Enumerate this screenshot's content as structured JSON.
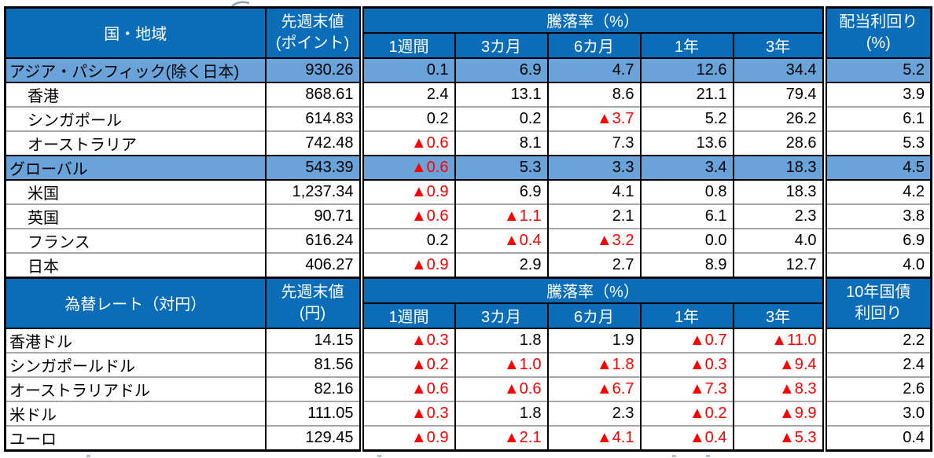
{
  "colors": {
    "header_blue": "#0b6db8",
    "highlight_blue": "#69a3da",
    "negative_red": "#ff0000",
    "separator_gray": "#a6a6a6"
  },
  "table1": {
    "corner_label": "国・地域",
    "last_week_header": "先週末値",
    "last_week_unit": "(ポイント)",
    "change_header": "騰落率（%）",
    "period_headers": [
      "1週間",
      "3カ月",
      "6カ月",
      "1年",
      "3年"
    ],
    "yield_header": "配当利回り",
    "yield_unit": "(%)",
    "rows": [
      {
        "label": "アジア・パシフィック(除く日本)",
        "highlight": true,
        "indent": false,
        "value": "930.26",
        "changes": [
          "0.1",
          "6.9",
          "4.7",
          "12.6",
          "34.4"
        ],
        "yield": "5.2"
      },
      {
        "label": "香港",
        "highlight": false,
        "indent": true,
        "value": "868.61",
        "changes": [
          "2.4",
          "13.1",
          "8.6",
          "21.1",
          "79.4"
        ],
        "yield": "3.9"
      },
      {
        "label": "シンガポール",
        "highlight": false,
        "indent": true,
        "value": "614.83",
        "changes": [
          "0.2",
          "0.2",
          "▲3.7",
          "5.2",
          "26.2"
        ],
        "yield": "6.1"
      },
      {
        "label": "オーストラリア",
        "highlight": false,
        "indent": true,
        "value": "742.48",
        "changes": [
          "▲0.6",
          "8.1",
          "7.3",
          "13.6",
          "28.6"
        ],
        "yield": "5.3"
      },
      {
        "label": "グローバル",
        "highlight": true,
        "indent": false,
        "value": "543.39",
        "changes": [
          "▲0.6",
          "5.3",
          "3.3",
          "3.4",
          "18.3"
        ],
        "yield": "4.5"
      },
      {
        "label": "米国",
        "highlight": false,
        "indent": true,
        "value": "1,237.34",
        "changes": [
          "▲0.9",
          "6.9",
          "4.1",
          "0.8",
          "18.3"
        ],
        "yield": "4.2"
      },
      {
        "label": "英国",
        "highlight": false,
        "indent": true,
        "value": "90.71",
        "changes": [
          "▲0.6",
          "▲1.1",
          "2.1",
          "6.1",
          "2.3"
        ],
        "yield": "3.8"
      },
      {
        "label": "フランス",
        "highlight": false,
        "indent": true,
        "value": "616.24",
        "changes": [
          "0.2",
          "▲0.4",
          "▲3.2",
          "0.0",
          "4.0"
        ],
        "yield": "6.9"
      },
      {
        "label": "日本",
        "highlight": false,
        "indent": true,
        "value": "406.27",
        "changes": [
          "▲0.9",
          "2.9",
          "2.7",
          "8.9",
          "12.7"
        ],
        "yield": "4.0"
      }
    ]
  },
  "table2": {
    "corner_label": "為替レート（対円）",
    "last_week_header": "先週末値",
    "last_week_unit": "(円)",
    "change_header": "騰落率（%）",
    "period_headers": [
      "1週間",
      "3カ月",
      "6カ月",
      "1年",
      "3年"
    ],
    "yield_header": "10年国債",
    "yield_unit": "利回り",
    "rows": [
      {
        "label": "香港ドル",
        "highlight": false,
        "indent": false,
        "value": "14.15",
        "changes": [
          "▲0.3",
          "1.8",
          "1.9",
          "▲0.7",
          "▲11.0"
        ],
        "yield": "2.2"
      },
      {
        "label": "シンガポールドル",
        "highlight": false,
        "indent": false,
        "value": "81.56",
        "changes": [
          "▲0.2",
          "▲1.0",
          "▲1.8",
          "▲0.3",
          "▲9.4"
        ],
        "yield": "2.4"
      },
      {
        "label": "オーストラリアドル",
        "highlight": false,
        "indent": false,
        "value": "82.16",
        "changes": [
          "▲0.6",
          "▲0.6",
          "▲6.7",
          "▲7.3",
          "▲8.3"
        ],
        "yield": "2.6"
      },
      {
        "label": "米ドル",
        "highlight": false,
        "indent": false,
        "value": "111.05",
        "changes": [
          "▲0.3",
          "1.8",
          "2.3",
          "▲0.2",
          "▲9.9"
        ],
        "yield": "3.0"
      },
      {
        "label": "ユーロ",
        "highlight": false,
        "indent": false,
        "value": "129.45",
        "changes": [
          "▲0.9",
          "▲2.1",
          "▲4.1",
          "▲0.4",
          "▲5.3"
        ],
        "yield": "0.4"
      }
    ]
  }
}
